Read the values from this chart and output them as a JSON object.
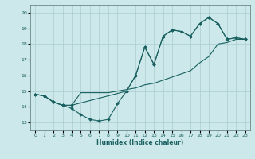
{
  "xlabel": "Humidex (Indice chaleur)",
  "bg_color": "#cce8ea",
  "grid_color": "#aacccc",
  "line_color": "#1a6060",
  "xlim": [
    -0.5,
    23.5
  ],
  "ylim": [
    12.5,
    20.5
  ],
  "xticks": [
    0,
    1,
    2,
    3,
    4,
    5,
    6,
    7,
    8,
    9,
    10,
    11,
    12,
    13,
    14,
    15,
    16,
    17,
    18,
    19,
    20,
    21,
    22,
    23
  ],
  "yticks": [
    13,
    14,
    15,
    16,
    17,
    18,
    19,
    20
  ],
  "line1_x": [
    0,
    1,
    2,
    3,
    4,
    5,
    6,
    7,
    8,
    9,
    10,
    11,
    12,
    13,
    14,
    15,
    16,
    17,
    18,
    19,
    20,
    21,
    22,
    23
  ],
  "line1_y": [
    14.8,
    14.7,
    14.3,
    14.1,
    13.9,
    13.5,
    13.2,
    13.1,
    13.2,
    14.2,
    15.0,
    16.0,
    17.8,
    16.7,
    18.5,
    18.9,
    18.8,
    18.5,
    19.3,
    19.7,
    19.3,
    18.3,
    18.4,
    18.3
  ],
  "line2_x": [
    0,
    1,
    2,
    3,
    4,
    5,
    6,
    7,
    8,
    9,
    10,
    11,
    12,
    13,
    14,
    15,
    16,
    17,
    18,
    19,
    20,
    21,
    22,
    23
  ],
  "line2_y": [
    14.8,
    14.7,
    14.3,
    14.1,
    14.1,
    14.9,
    14.9,
    14.9,
    14.9,
    15.0,
    15.1,
    15.2,
    15.4,
    15.5,
    15.7,
    15.9,
    16.1,
    16.3,
    16.8,
    17.2,
    18.0,
    18.1,
    18.3,
    18.3
  ],
  "line3_x": [
    0,
    1,
    2,
    3,
    4,
    10,
    11,
    12,
    13,
    14,
    15,
    16,
    17,
    18,
    19,
    20,
    21,
    22,
    23
  ],
  "line3_y": [
    14.8,
    14.7,
    14.3,
    14.1,
    14.1,
    15.0,
    16.0,
    17.8,
    16.7,
    18.5,
    18.9,
    18.8,
    18.5,
    19.3,
    19.7,
    19.3,
    18.3,
    18.4,
    18.3
  ]
}
